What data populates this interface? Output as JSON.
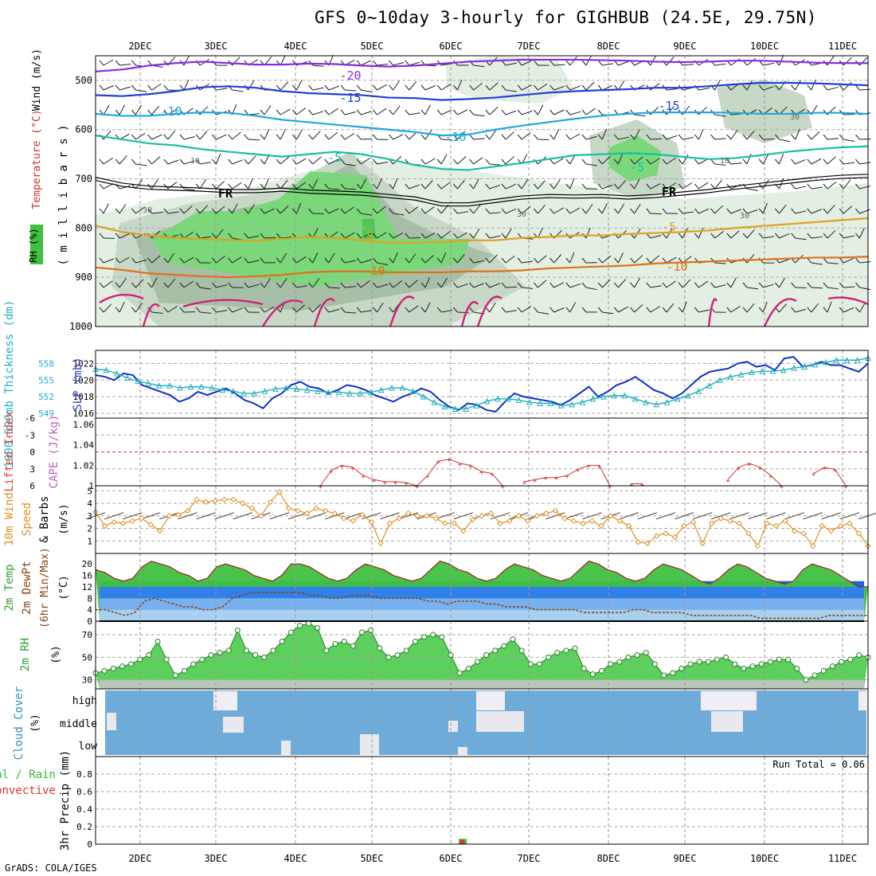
{
  "title": "GFS 0~10day 3-hourly for GIGHBUB (24.5E, 29.75N)",
  "credit": "GrADS: COLA/IGES",
  "time_axis": {
    "labels": [
      "2DEC",
      "3DEC",
      "4DEC",
      "5DEC",
      "6DEC",
      "7DEC",
      "8DEC",
      "9DEC",
      "10DEC",
      "11DEC"
    ]
  },
  "chart_data": [
    {
      "type": "heatmap",
      "panel": "upper-air",
      "ylabel_parts": [
        "RH (%)",
        "Temperature (°C)",
        "Wind (m/s)"
      ],
      "ylabel_units": "( m i l l i b a r s )",
      "y_ticks": [
        500,
        600,
        700,
        800,
        900,
        1000
      ],
      "ylim": [
        1000,
        450
      ],
      "y_reversed": true,
      "rh_legend": "RH (%)",
      "contour_labels": [
        "-20",
        "-15",
        "-15",
        "-10",
        "-10",
        "-5",
        "-5",
        "FR",
        "FR",
        "-5",
        "-5",
        "-10",
        "-10",
        "30",
        "30",
        "30",
        "30",
        "10",
        "10"
      ],
      "isotherms": [
        {
          "label": "-20",
          "color": "#8b2be2",
          "values": [
            482,
            478,
            470,
            465,
            462,
            465,
            468,
            468,
            466,
            467,
            470,
            472,
            470,
            466,
            462,
            460,
            458,
            458,
            458,
            459,
            460,
            462,
            463,
            462,
            460,
            460,
            462,
            464,
            465,
            465
          ]
        },
        {
          "label": "-15",
          "color": "#1e40d8",
          "values": [
            530,
            532,
            528,
            522,
            514,
            512,
            515,
            522,
            526,
            528,
            530,
            535,
            536,
            540,
            538,
            535,
            530,
            525,
            522,
            520,
            518,
            515,
            515,
            512,
            508,
            505,
            505,
            506,
            508,
            510
          ]
        },
        {
          "label": "-10",
          "color": "#1ea8e0",
          "values": [
            568,
            572,
            572,
            568,
            565,
            566,
            572,
            580,
            585,
            590,
            595,
            600,
            605,
            612,
            610,
            600,
            592,
            585,
            578,
            572,
            568,
            565,
            565,
            565,
            566,
            568,
            568,
            566,
            566,
            568
          ]
        },
        {
          "label": "-5",
          "color": "#17c0a0",
          "values": [
            612,
            620,
            628,
            632,
            640,
            645,
            650,
            655,
            650,
            645,
            650,
            660,
            672,
            680,
            682,
            675,
            668,
            660,
            652,
            650,
            648,
            650,
            655,
            660,
            658,
            652,
            645,
            640,
            636,
            634
          ]
        },
        {
          "label": "FR",
          "color": "#000000",
          "values": [
            700,
            712,
            718,
            720,
            722,
            725,
            725,
            722,
            726,
            728,
            730,
            735,
            740,
            752,
            752,
            745,
            738,
            735,
            736,
            735,
            738,
            735,
            730,
            725,
            718,
            712,
            706,
            700,
            696,
            694
          ]
        },
        {
          "label": "5",
          "color": "#e0a020",
          "values": [
            795,
            808,
            815,
            820,
            822,
            824,
            826,
            822,
            818,
            820,
            825,
            830,
            830,
            828,
            825,
            825,
            820,
            818,
            815,
            815,
            812,
            810,
            808,
            805,
            800,
            796,
            792,
            788,
            784,
            780
          ]
        },
        {
          "label": "10",
          "color": "#e07018",
          "values": [
            880,
            885,
            892,
            895,
            898,
            900,
            898,
            895,
            890,
            888,
            888,
            890,
            890,
            890,
            888,
            888,
            886,
            882,
            880,
            878,
            876,
            872,
            870,
            868,
            866,
            864,
            862,
            860,
            860,
            858
          ]
        }
      ]
    },
    {
      "type": "line",
      "panel": "thickness-slp",
      "ylabel_left": "1000-500mb Thickness (dm)",
      "ylabel_right": "SLP (mb)",
      "left_ticks": [
        "558",
        "555",
        "552",
        "549"
      ],
      "right_ticks": [
        "1022",
        "1020",
        "1018",
        "1016"
      ],
      "series": [
        {
          "name": "SLP (mb)",
          "color": "#1030c8",
          "values": [
            1020.6,
            1020.4,
            1020.0,
            1020.8,
            1020.6,
            1019.4,
            1019.0,
            1018.6,
            1018.2,
            1017.4,
            1017.8,
            1018.6,
            1018.2,
            1018.6,
            1019.0,
            1018.4,
            1017.6,
            1017.2,
            1016.6,
            1017.8,
            1018.4,
            1019.4,
            1019.8,
            1019.2,
            1019.0,
            1018.4,
            1018.8,
            1019.4,
            1019.2,
            1018.8,
            1018.2,
            1017.8,
            1017.4,
            1018.0,
            1018.4,
            1019.0,
            1018.6,
            1017.6,
            1016.8,
            1016.4,
            1017.2,
            1017.0,
            1016.4,
            1016.2,
            1017.4,
            1018.4,
            1018.0,
            1017.8,
            1017.6,
            1017.4,
            1017.0,
            1017.6,
            1018.4,
            1019.2,
            1018.0,
            1018.6,
            1019.4,
            1019.8,
            1020.4,
            1019.6,
            1018.8,
            1018.4,
            1017.8,
            1018.4,
            1019.4,
            1020.4,
            1021.0,
            1021.2,
            1021.4,
            1022.0,
            1022.2,
            1021.6,
            1021.8,
            1021.2,
            1022.6,
            1022.8,
            1021.6,
            1021.8,
            1022.2,
            1021.8,
            1021.8,
            1021.4,
            1021.0,
            1022.0
          ]
        },
        {
          "name": "1000-500mb Thickness (dm)",
          "color": "#20b0c0",
          "values": [
            557.0,
            556.8,
            556.2,
            555.4,
            554.8,
            554.4,
            554.0,
            554.0,
            553.6,
            553.8,
            553.8,
            553.6,
            553.2,
            553.0,
            552.6,
            552.6,
            553.0,
            553.4,
            553.6,
            553.4,
            553.2,
            553.0,
            552.8,
            552.8,
            552.6,
            552.6,
            552.8,
            553.2,
            553.6,
            553.6,
            553.0,
            552.0,
            551.0,
            550.2,
            549.8,
            549.8,
            550.4,
            551.2,
            551.6,
            551.6,
            551.4,
            551.0,
            550.8,
            550.8,
            550.4,
            550.6,
            551.0,
            551.6,
            552.0,
            552.2,
            552.2,
            551.6,
            551.0,
            550.6,
            551.0,
            551.6,
            552.2,
            553.0,
            554.0,
            555.0,
            555.6,
            556.0,
            556.4,
            556.6,
            556.6,
            556.8,
            557.2,
            557.4,
            557.8,
            558.2,
            558.6,
            558.6,
            558.6,
            559.0
          ]
        }
      ]
    },
    {
      "type": "line",
      "panel": "lifted-index-cape",
      "ylabel_left": "Lifted Index",
      "ylabel_right": "CAPE (J/kg)",
      "left_ticks": [
        "-6",
        "-3",
        "0",
        "3",
        "6"
      ],
      "right_ticks": [
        "1.06",
        "1.04",
        "1.02",
        "1"
      ],
      "series": [
        {
          "name": "CAPE (J/kg)",
          "color": "#d03030",
          "values": [
            null,
            null,
            null,
            null,
            null,
            null,
            null,
            null,
            null,
            null,
            null,
            null,
            null,
            null,
            null,
            null,
            null,
            null,
            1.0,
            1.015,
            1.02,
            1.018,
            1.01,
            1.006,
            1.004,
            1.004,
            1.003,
            1.0,
            1.01,
            1.024,
            1.026,
            1.022,
            1.02,
            1.014,
            1.012,
            1.0,
            null,
            1.004,
            1.006,
            1.008,
            1.008,
            1.01,
            1.016,
            1.02,
            1.02,
            1.0,
            null,
            1.002,
            1.002,
            null,
            null,
            null,
            null,
            null,
            null,
            null,
            1.006,
            1.018,
            1.022,
            1.018,
            1.01,
            1.0,
            null,
            null,
            1.012,
            1.018,
            1.016,
            1.0
          ]
        }
      ]
    },
    {
      "type": "line",
      "panel": "10m-wind",
      "ylabel": "10m Wind Speed & Barbs (m/s)",
      "y_ticks": [
        "5",
        "4",
        "3",
        "2",
        "1"
      ],
      "ylim": [
        0,
        5
      ],
      "series": [
        {
          "name": "10m Wind Speed",
          "color": "#e09020",
          "values": [
            3.3,
            2.2,
            2.5,
            2.4,
            2.6,
            2.8,
            2.3,
            1.8,
            3.0,
            3.1,
            3.4,
            4.3,
            4.1,
            4.2,
            4.3,
            4.3,
            4.0,
            3.6,
            3.0,
            4.1,
            4.9,
            3.6,
            3.4,
            3.2,
            3.6,
            3.4,
            3.2,
            2.8,
            2.6,
            3.1,
            2.5,
            0.8,
            2.4,
            2.8,
            3.2,
            3.0,
            3.0,
            2.8,
            2.4,
            2.4,
            1.8,
            2.7,
            3.0,
            3.2,
            2.4,
            2.6,
            3.0,
            2.6,
            3.0,
            3.2,
            3.4,
            2.8,
            2.6,
            2.4,
            2.6,
            2.2,
            3.0,
            2.6,
            2.2,
            0.9,
            0.8,
            1.4,
            1.6,
            1.3,
            2.2,
            2.5,
            0.8,
            2.4,
            2.8,
            2.6,
            2.4,
            1.6,
            0.6,
            2.4,
            2.2,
            2.6,
            1.8,
            1.6,
            0.6,
            2.2,
            1.8,
            2.2,
            2.4,
            1.6,
            0.6
          ]
        }
      ]
    },
    {
      "type": "area",
      "panel": "2m-temp",
      "ylabel": "2m Temp 2m DewPt (6hr Min/Max) (°C)",
      "y_ticks": [
        "20",
        "16",
        "12",
        "8",
        "4",
        "0"
      ],
      "ylim": [
        0,
        22
      ],
      "series": [
        {
          "name": "2m Temp",
          "color": "#30c030",
          "values": [
            18,
            17,
            15,
            14,
            15,
            19,
            21,
            20,
            19,
            17,
            16,
            14,
            15,
            19,
            20,
            19,
            18,
            16,
            15,
            14,
            16,
            20,
            20,
            19,
            17,
            15,
            14,
            15,
            18,
            20,
            19,
            18,
            16,
            15,
            14,
            15,
            18,
            21,
            20,
            18,
            17,
            15,
            14,
            15,
            18,
            20,
            19,
            18,
            16,
            15,
            14,
            15,
            18,
            21,
            20,
            18,
            17,
            15,
            14,
            15,
            18,
            20,
            19,
            18,
            16,
            14,
            13,
            15,
            18,
            20,
            19,
            17,
            15,
            14,
            13,
            14,
            18,
            20,
            19,
            18,
            16,
            14,
            12,
            12
          ]
        },
        {
          "name": "2m DewPt",
          "color": "#8b4513",
          "values": [
            4,
            4,
            3,
            2,
            3,
            7,
            8,
            7,
            6,
            5,
            5,
            4,
            4,
            5,
            8,
            9,
            10,
            10,
            10,
            10,
            10,
            10,
            9,
            9,
            8,
            8,
            9,
            9,
            9,
            8,
            8,
            8,
            8,
            8,
            7,
            7,
            6,
            7,
            7,
            7,
            6,
            6,
            5,
            5,
            5,
            4,
            4,
            4,
            4,
            4,
            3,
            3,
            3,
            3,
            3,
            4,
            4,
            3,
            3,
            3,
            3,
            2,
            2,
            2,
            2,
            2,
            2,
            2,
            1,
            1,
            1,
            1,
            1,
            1,
            1,
            2,
            2,
            2,
            2,
            2
          ]
        }
      ]
    },
    {
      "type": "area",
      "panel": "2m-rh",
      "ylabel": "2m RH (%)",
      "y_ticks": [
        "70",
        "50",
        "30"
      ],
      "ylim": [
        22,
        82
      ],
      "series": [
        {
          "name": "2m RH",
          "color": "#30a030",
          "values": [
            36,
            38,
            40,
            42,
            44,
            48,
            52,
            64,
            48,
            34,
            38,
            44,
            48,
            52,
            54,
            56,
            74,
            56,
            52,
            50,
            56,
            64,
            72,
            78,
            80,
            76,
            56,
            62,
            64,
            60,
            72,
            74,
            58,
            50,
            52,
            56,
            64,
            68,
            70,
            68,
            52,
            36,
            40,
            46,
            52,
            56,
            60,
            66,
            56,
            44,
            44,
            50,
            54,
            56,
            58,
            40,
            35,
            38,
            44,
            46,
            50,
            52,
            54,
            44,
            34,
            36,
            40,
            44,
            46,
            46,
            48,
            50,
            44,
            40,
            42,
            44,
            46,
            48,
            48,
            40,
            30,
            34,
            38,
            42,
            46,
            48,
            52,
            50
          ]
        }
      ]
    },
    {
      "type": "area",
      "panel": "cloud-cover",
      "ylabel": "Cloud Cover (%)",
      "y_ticks": [
        "high",
        "middle",
        "low"
      ]
    },
    {
      "type": "bar",
      "panel": "precip",
      "ylabel": "3hr Precip (mm)",
      "ylabel_side": [
        "Total / Rain",
        "Convective"
      ],
      "y_ticks": [
        "0.8",
        "0.6",
        "0.4",
        "0.2",
        "0"
      ],
      "ylim": [
        0,
        1
      ],
      "annotation": "Run Total = 0.06",
      "series": [
        {
          "name": "Total / Rain",
          "color": "#30c030",
          "values": [
            {
              "day": "6DEC",
              "value": 0.06
            }
          ]
        },
        {
          "name": "Convective",
          "color": "#e03030",
          "values": [
            {
              "day": "6DEC",
              "value": 0.06
            }
          ]
        }
      ]
    }
  ]
}
